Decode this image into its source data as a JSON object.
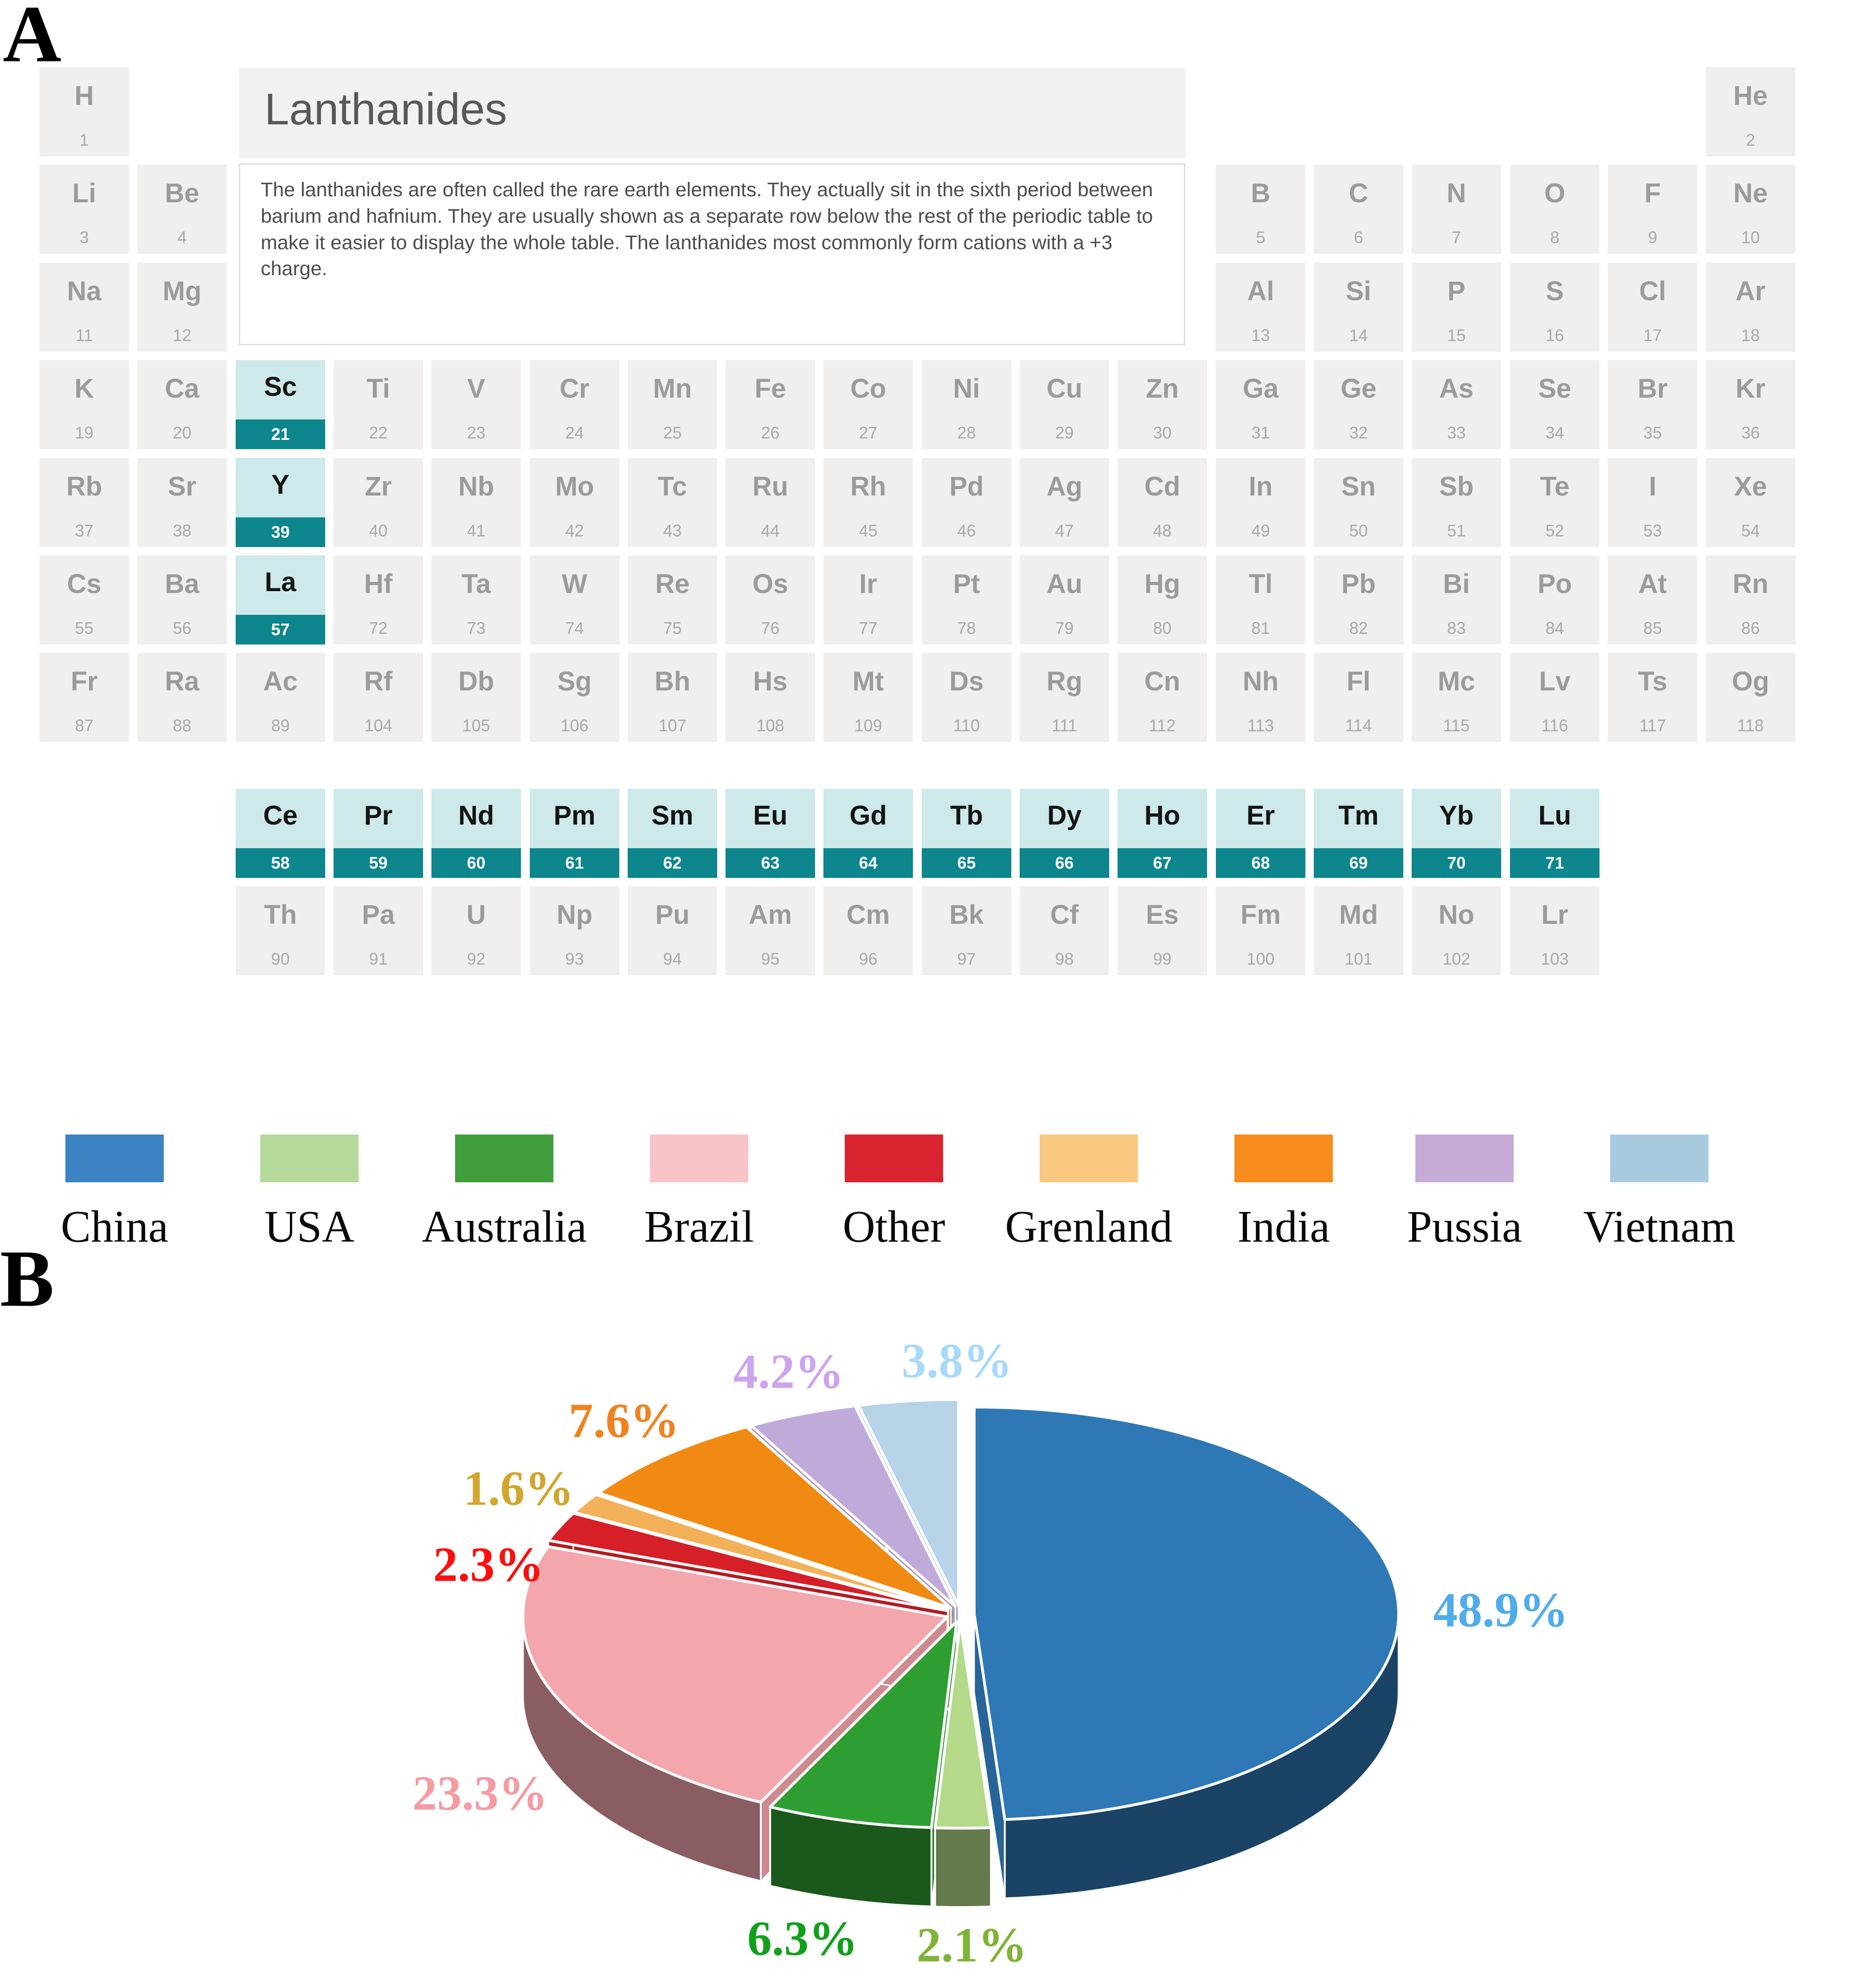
{
  "figure": {
    "panel_a_label": "A",
    "panel_b_label": "B"
  },
  "periodic_table": {
    "title": "Lanthanides",
    "description": "The lanthanides are often called the rare earth elements. They actually sit in the sixth period between barium and hafnium. They are usually shown as a separate row below the rest of the periodic table to make it easier to display the whole table. The lanthanides most commonly form cations with a +3 charge.",
    "highlight_symbols": [
      "Sc",
      "Y",
      "La"
    ],
    "colors": {
      "cell_bg": "#f0efee",
      "cell_text": "#9b9b9b",
      "highlight_bg": "#cde9ea",
      "highlight_band": "#0e868d",
      "highlight_symbol": "#141414",
      "band_text": "#ffffff",
      "title_bg": "#f1f1f2",
      "title_text": "#58585a"
    },
    "main_elements": [
      {
        "s": "H",
        "n": 1,
        "r": 1,
        "c": 1
      },
      {
        "s": "He",
        "n": 2,
        "r": 1,
        "c": 18
      },
      {
        "s": "Li",
        "n": 3,
        "r": 2,
        "c": 1
      },
      {
        "s": "Be",
        "n": 4,
        "r": 2,
        "c": 2
      },
      {
        "s": "B",
        "n": 5,
        "r": 2,
        "c": 13
      },
      {
        "s": "C",
        "n": 6,
        "r": 2,
        "c": 14
      },
      {
        "s": "N",
        "n": 7,
        "r": 2,
        "c": 15
      },
      {
        "s": "O",
        "n": 8,
        "r": 2,
        "c": 16
      },
      {
        "s": "F",
        "n": 9,
        "r": 2,
        "c": 17
      },
      {
        "s": "Ne",
        "n": 10,
        "r": 2,
        "c": 18
      },
      {
        "s": "Na",
        "n": 11,
        "r": 3,
        "c": 1
      },
      {
        "s": "Mg",
        "n": 12,
        "r": 3,
        "c": 2
      },
      {
        "s": "Al",
        "n": 13,
        "r": 3,
        "c": 13
      },
      {
        "s": "Si",
        "n": 14,
        "r": 3,
        "c": 14
      },
      {
        "s": "P",
        "n": 15,
        "r": 3,
        "c": 15
      },
      {
        "s": "S",
        "n": 16,
        "r": 3,
        "c": 16
      },
      {
        "s": "Cl",
        "n": 17,
        "r": 3,
        "c": 17
      },
      {
        "s": "Ar",
        "n": 18,
        "r": 3,
        "c": 18
      },
      {
        "s": "K",
        "n": 19,
        "r": 4,
        "c": 1
      },
      {
        "s": "Ca",
        "n": 20,
        "r": 4,
        "c": 2
      },
      {
        "s": "Sc",
        "n": 21,
        "r": 4,
        "c": 3
      },
      {
        "s": "Ti",
        "n": 22,
        "r": 4,
        "c": 4
      },
      {
        "s": "V",
        "n": 23,
        "r": 4,
        "c": 5
      },
      {
        "s": "Cr",
        "n": 24,
        "r": 4,
        "c": 6
      },
      {
        "s": "Mn",
        "n": 25,
        "r": 4,
        "c": 7
      },
      {
        "s": "Fe",
        "n": 26,
        "r": 4,
        "c": 8
      },
      {
        "s": "Co",
        "n": 27,
        "r": 4,
        "c": 9
      },
      {
        "s": "Ni",
        "n": 28,
        "r": 4,
        "c": 10
      },
      {
        "s": "Cu",
        "n": 29,
        "r": 4,
        "c": 11
      },
      {
        "s": "Zn",
        "n": 30,
        "r": 4,
        "c": 12
      },
      {
        "s": "Ga",
        "n": 31,
        "r": 4,
        "c": 13
      },
      {
        "s": "Ge",
        "n": 32,
        "r": 4,
        "c": 14
      },
      {
        "s": "As",
        "n": 33,
        "r": 4,
        "c": 15
      },
      {
        "s": "Se",
        "n": 34,
        "r": 4,
        "c": 16
      },
      {
        "s": "Br",
        "n": 35,
        "r": 4,
        "c": 17
      },
      {
        "s": "Kr",
        "n": 36,
        "r": 4,
        "c": 18
      },
      {
        "s": "Rb",
        "n": 37,
        "r": 5,
        "c": 1
      },
      {
        "s": "Sr",
        "n": 38,
        "r": 5,
        "c": 2
      },
      {
        "s": "Y",
        "n": 39,
        "r": 5,
        "c": 3
      },
      {
        "s": "Zr",
        "n": 40,
        "r": 5,
        "c": 4
      },
      {
        "s": "Nb",
        "n": 41,
        "r": 5,
        "c": 5
      },
      {
        "s": "Mo",
        "n": 42,
        "r": 5,
        "c": 6
      },
      {
        "s": "Tc",
        "n": 43,
        "r": 5,
        "c": 7
      },
      {
        "s": "Ru",
        "n": 44,
        "r": 5,
        "c": 8
      },
      {
        "s": "Rh",
        "n": 45,
        "r": 5,
        "c": 9
      },
      {
        "s": "Pd",
        "n": 46,
        "r": 5,
        "c": 10
      },
      {
        "s": "Ag",
        "n": 47,
        "r": 5,
        "c": 11
      },
      {
        "s": "Cd",
        "n": 48,
        "r": 5,
        "c": 12
      },
      {
        "s": "In",
        "n": 49,
        "r": 5,
        "c": 13
      },
      {
        "s": "Sn",
        "n": 50,
        "r": 5,
        "c": 14
      },
      {
        "s": "Sb",
        "n": 51,
        "r": 5,
        "c": 15
      },
      {
        "s": "Te",
        "n": 52,
        "r": 5,
        "c": 16
      },
      {
        "s": "I",
        "n": 53,
        "r": 5,
        "c": 17
      },
      {
        "s": "Xe",
        "n": 54,
        "r": 5,
        "c": 18
      },
      {
        "s": "Cs",
        "n": 55,
        "r": 6,
        "c": 1
      },
      {
        "s": "Ba",
        "n": 56,
        "r": 6,
        "c": 2
      },
      {
        "s": "La",
        "n": 57,
        "r": 6,
        "c": 3
      },
      {
        "s": "Hf",
        "n": 72,
        "r": 6,
        "c": 4
      },
      {
        "s": "Ta",
        "n": 73,
        "r": 6,
        "c": 5
      },
      {
        "s": "W",
        "n": 74,
        "r": 6,
        "c": 6
      },
      {
        "s": "Re",
        "n": 75,
        "r": 6,
        "c": 7
      },
      {
        "s": "Os",
        "n": 76,
        "r": 6,
        "c": 8
      },
      {
        "s": "Ir",
        "n": 77,
        "r": 6,
        "c": 9
      },
      {
        "s": "Pt",
        "n": 78,
        "r": 6,
        "c": 10
      },
      {
        "s": "Au",
        "n": 79,
        "r": 6,
        "c": 11
      },
      {
        "s": "Hg",
        "n": 80,
        "r": 6,
        "c": 12
      },
      {
        "s": "Tl",
        "n": 81,
        "r": 6,
        "c": 13
      },
      {
        "s": "Pb",
        "n": 82,
        "r": 6,
        "c": 14
      },
      {
        "s": "Bi",
        "n": 83,
        "r": 6,
        "c": 15
      },
      {
        "s": "Po",
        "n": 84,
        "r": 6,
        "c": 16
      },
      {
        "s": "At",
        "n": 85,
        "r": 6,
        "c": 17
      },
      {
        "s": "Rn",
        "n": 86,
        "r": 6,
        "c": 18
      },
      {
        "s": "Fr",
        "n": 87,
        "r": 7,
        "c": 1
      },
      {
        "s": "Ra",
        "n": 88,
        "r": 7,
        "c": 2
      },
      {
        "s": "Ac",
        "n": 89,
        "r": 7,
        "c": 3
      },
      {
        "s": "Rf",
        "n": 104,
        "r": 7,
        "c": 4
      },
      {
        "s": "Db",
        "n": 105,
        "r": 7,
        "c": 5
      },
      {
        "s": "Sg",
        "n": 106,
        "r": 7,
        "c": 6
      },
      {
        "s": "Bh",
        "n": 107,
        "r": 7,
        "c": 7
      },
      {
        "s": "Hs",
        "n": 108,
        "r": 7,
        "c": 8
      },
      {
        "s": "Mt",
        "n": 109,
        "r": 7,
        "c": 9
      },
      {
        "s": "Ds",
        "n": 110,
        "r": 7,
        "c": 10
      },
      {
        "s": "Rg",
        "n": 111,
        "r": 7,
        "c": 11
      },
      {
        "s": "Cn",
        "n": 112,
        "r": 7,
        "c": 12
      },
      {
        "s": "Nh",
        "n": 113,
        "r": 7,
        "c": 13
      },
      {
        "s": "Fl",
        "n": 114,
        "r": 7,
        "c": 14
      },
      {
        "s": "Mc",
        "n": 115,
        "r": 7,
        "c": 15
      },
      {
        "s": "Lv",
        "n": 116,
        "r": 7,
        "c": 16
      },
      {
        "s": "Ts",
        "n": 117,
        "r": 7,
        "c": 17
      },
      {
        "s": "Og",
        "n": 118,
        "r": 7,
        "c": 18
      }
    ],
    "lanthanides": [
      {
        "s": "Ce",
        "n": 58
      },
      {
        "s": "Pr",
        "n": 59
      },
      {
        "s": "Nd",
        "n": 60
      },
      {
        "s": "Pm",
        "n": 61
      },
      {
        "s": "Sm",
        "n": 62
      },
      {
        "s": "Eu",
        "n": 63
      },
      {
        "s": "Gd",
        "n": 64
      },
      {
        "s": "Tb",
        "n": 65
      },
      {
        "s": "Dy",
        "n": 66
      },
      {
        "s": "Ho",
        "n": 67
      },
      {
        "s": "Er",
        "n": 68
      },
      {
        "s": "Tm",
        "n": 69
      },
      {
        "s": "Yb",
        "n": 70
      },
      {
        "s": "Lu",
        "n": 71
      }
    ],
    "actinides": [
      {
        "s": "Th",
        "n": 90
      },
      {
        "s": "Pa",
        "n": 91
      },
      {
        "s": "U",
        "n": 92
      },
      {
        "s": "Np",
        "n": 93
      },
      {
        "s": "Pu",
        "n": 94
      },
      {
        "s": "Am",
        "n": 95
      },
      {
        "s": "Cm",
        "n": 96
      },
      {
        "s": "Bk",
        "n": 97
      },
      {
        "s": "Cf",
        "n": 98
      },
      {
        "s": "Es",
        "n": 99
      },
      {
        "s": "Fm",
        "n": 100
      },
      {
        "s": "Md",
        "n": 101
      },
      {
        "s": "No",
        "n": 102
      },
      {
        "s": "Lr",
        "n": 103
      }
    ]
  },
  "legend": {
    "items": [
      {
        "label": "China",
        "color": "#3b83c3"
      },
      {
        "label": "USA",
        "color": "#b5d89b"
      },
      {
        "label": "Australia",
        "color": "#3f9e3b"
      },
      {
        "label": "Brazil",
        "color": "#f9c4c8"
      },
      {
        "label": "Other",
        "color": "#d9232e"
      },
      {
        "label": "Grenland",
        "color": "#f9c880"
      },
      {
        "label": "India",
        "color": "#f78c1c"
      },
      {
        "label": "Pussia",
        "color": "#c6abd6"
      },
      {
        "label": "Vietnam",
        "color": "#a8cade"
      }
    ]
  },
  "chart_data": {
    "type": "pie",
    "style": "3d-exploded",
    "unit": "%",
    "clockwise_from_top": true,
    "slices": [
      {
        "label": "China",
        "value": 48.9,
        "color": "#2e78b6",
        "label_color": "#4faceb"
      },
      {
        "label": "USA",
        "value": 2.1,
        "color": "#b3d989",
        "label_color": "#7fb335"
      },
      {
        "label": "Australia",
        "value": 6.3,
        "color": "#2f9e32",
        "label_color": "#12a01c"
      },
      {
        "label": "Brazil",
        "value": 23.3,
        "color": "#f4a6ad",
        "label_color": "#f49ba3"
      },
      {
        "label": "Other",
        "value": 2.3,
        "color": "#d71f28",
        "label_color": "#fd0d0d"
      },
      {
        "label": "Grenland",
        "value": 1.6,
        "color": "#f2b158",
        "label_color": "#d2a62e"
      },
      {
        "label": "India",
        "value": 7.6,
        "color": "#f18a12",
        "label_color": "#ef8322"
      },
      {
        "label": "Pussia",
        "value": 4.2,
        "color": "#bfaad9",
        "label_color": "#cda4f0"
      },
      {
        "label": "Vietnam",
        "value": 3.8,
        "color": "#b7d3e8",
        "label_color": "#a9d9f9"
      }
    ]
  }
}
